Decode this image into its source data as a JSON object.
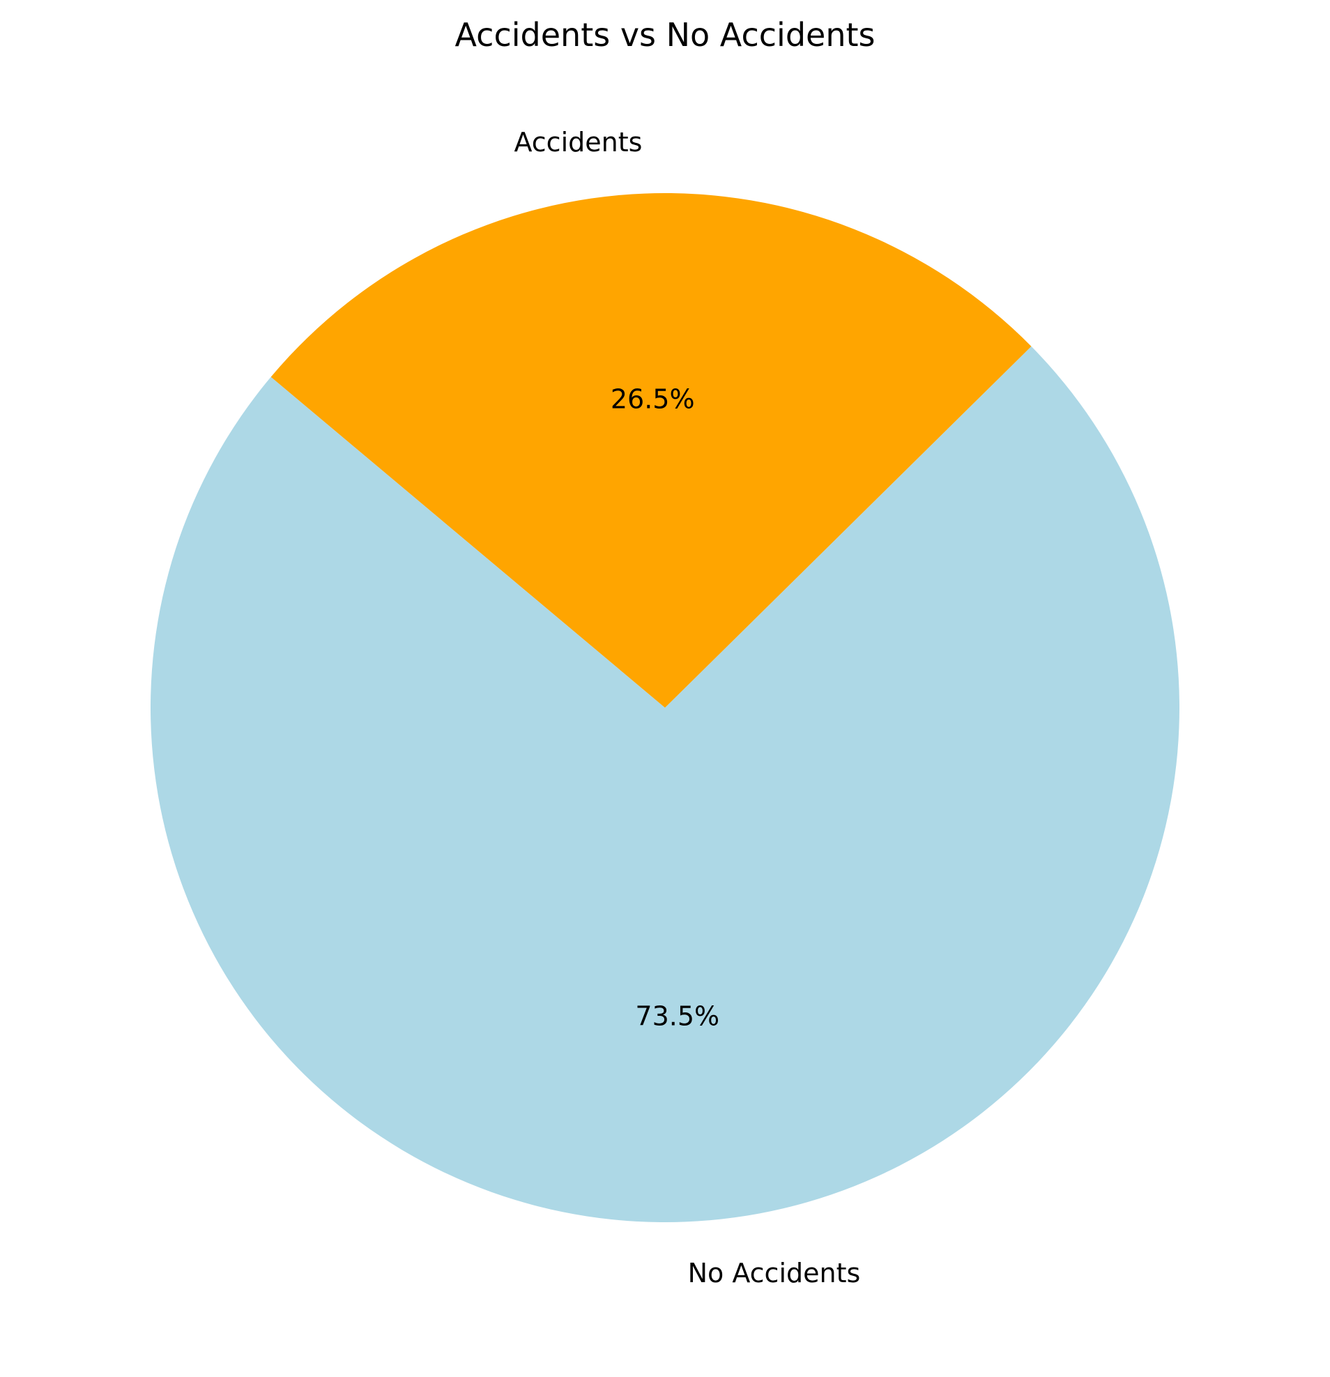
{
  "chart_data": {
    "type": "pie",
    "title": "Accidents vs No Accidents",
    "start_angle_deg": 140,
    "counterclockwise": true,
    "slices": [
      {
        "label": "No Accidents",
        "value": 73.5,
        "pct_label": "73.5%",
        "color": "#add8e6"
      },
      {
        "label": "Accidents",
        "value": 26.5,
        "pct_label": "26.5%",
        "color": "#ffa500"
      }
    ],
    "legend": "none"
  }
}
